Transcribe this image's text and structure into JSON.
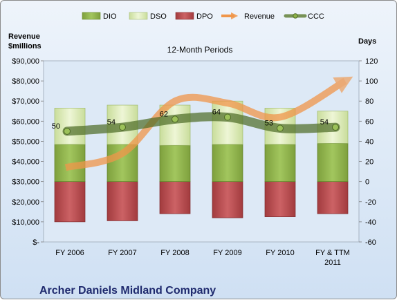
{
  "chart_data": {
    "type": "bar",
    "title": "12-Month Periods",
    "company": "Archer Daniels Midland Company",
    "left_axis_label_line1": "Revenue",
    "left_axis_label_line2": "$millions",
    "right_axis_label": "Days",
    "categories": [
      "FY 2006",
      "FY 2007",
      "FY 2008",
      "FY 2009",
      "FY 2010",
      "FY & TTM 2011"
    ],
    "category_lines": [
      [
        "FY 2006"
      ],
      [
        "FY 2007"
      ],
      [
        "FY 2008"
      ],
      [
        "FY 2009"
      ],
      [
        "FY 2010"
      ],
      [
        "FY & TTM",
        "2011"
      ]
    ],
    "left_axis": {
      "min": 0,
      "max": 90000,
      "step": 10000,
      "tick_labels": [
        "$-",
        "$10,000",
        "$20,000",
        "$30,000",
        "$40,000",
        "$50,000",
        "$60,000",
        "$70,000",
        "$80,000",
        "$90,000"
      ]
    },
    "right_axis": {
      "min": -60,
      "max": 120,
      "step": 20,
      "tick_labels": [
        "-60",
        "-40",
        "-20",
        "0",
        "20",
        "40",
        "60",
        "80",
        "100",
        "120"
      ]
    },
    "legend_position": "top",
    "series": [
      {
        "name": "DIO",
        "axis": "right",
        "kind": "stacked-bar",
        "color": "#8db249",
        "values": [
          37,
          37,
          36,
          37,
          37,
          38
        ]
      },
      {
        "name": "DSO",
        "axis": "right",
        "kind": "stacked-bar",
        "color": "#d8e8b4",
        "values": [
          36,
          39,
          40,
          43,
          36,
          32
        ]
      },
      {
        "name": "DPO",
        "axis": "right",
        "kind": "negative-bar",
        "color": "#b8484b",
        "values": [
          -40,
          -39,
          -32,
          -36,
          -35,
          -32
        ]
      },
      {
        "name": "Revenue",
        "axis": "left",
        "kind": "arrow-line",
        "color": "#f0964a",
        "values": [
          37000,
          44000,
          70000,
          69000,
          62000,
          80000
        ]
      },
      {
        "name": "CCC",
        "axis": "right",
        "kind": "line-markers",
        "color": "#5a7a2e",
        "values": [
          50,
          54,
          62,
          64,
          53,
          54
        ]
      }
    ],
    "data_labels": [
      "50",
      "54",
      "62",
      "64",
      "53",
      "54"
    ]
  }
}
